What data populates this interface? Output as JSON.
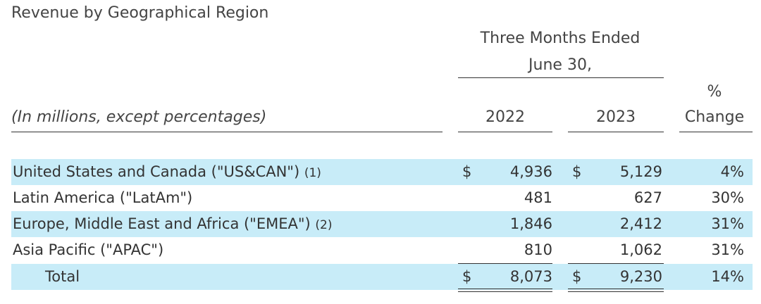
{
  "title": "Revenue by Geographical Region",
  "period_header": {
    "line1": "Three Months Ended",
    "line2": "June 30,"
  },
  "column_headers": {
    "subtitle": "(In millions, except percentages)",
    "year1": "2022",
    "year2": "2023",
    "pct_line1": "%",
    "pct_line2": "Change"
  },
  "rows": [
    {
      "label": "United States and Canada (\"US&CAN\")",
      "footnote": "(1)",
      "cur1": "$",
      "v2022": "4,936",
      "cur2": "$",
      "v2023": "5,129",
      "change": "4%"
    },
    {
      "label": "Latin America (\"LatAm\")",
      "footnote": "",
      "cur1": "",
      "v2022": "481",
      "cur2": "",
      "v2023": "627",
      "change": "30%"
    },
    {
      "label": "Europe, Middle East and Africa (\"EMEA\")",
      "footnote": "(2)",
      "cur1": "",
      "v2022": "1,846",
      "cur2": "",
      "v2023": "2,412",
      "change": "31%"
    },
    {
      "label": "Asia Pacific (\"APAC\")",
      "footnote": "",
      "cur1": "",
      "v2022": "810",
      "cur2": "",
      "v2023": "1,062",
      "change": "31%"
    }
  ],
  "total": {
    "label": "Total",
    "cur1": "$",
    "v2022": "8,073",
    "cur2": "$",
    "v2023": "9,230",
    "change": "14%"
  },
  "colors": {
    "row_shade": "#c8ecf8",
    "text": "#333333"
  }
}
